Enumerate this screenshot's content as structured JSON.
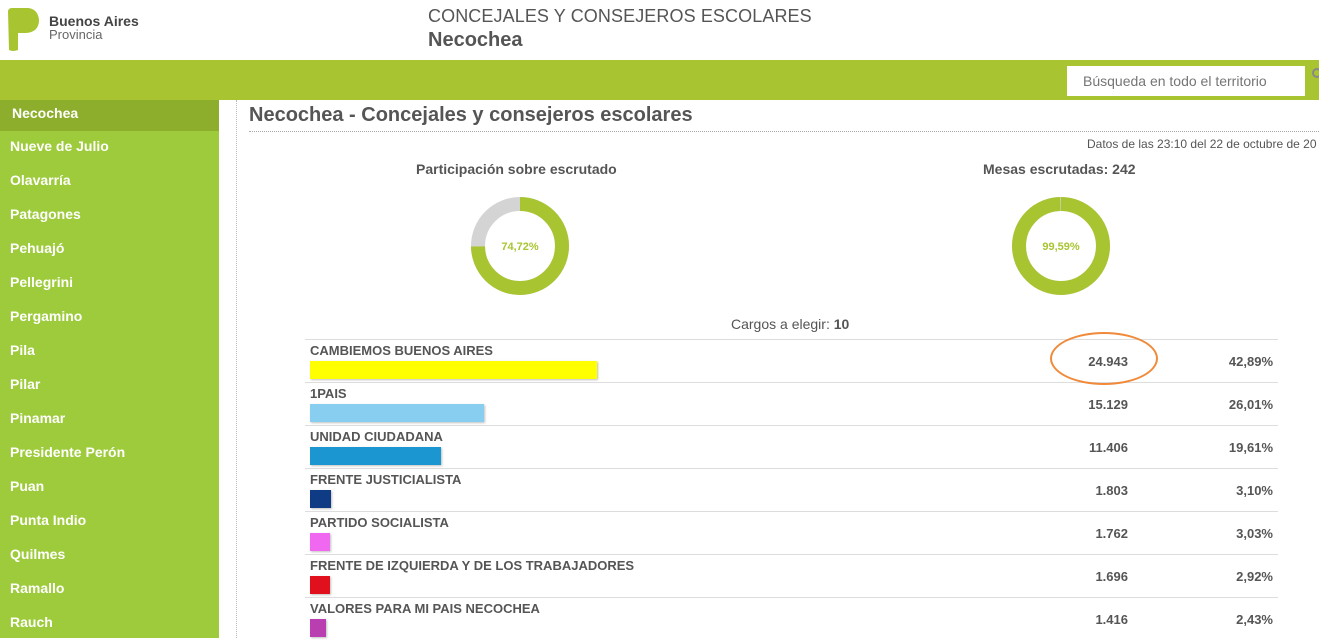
{
  "header": {
    "logo_line1": "Buenos Aires",
    "logo_line2": "Provincia",
    "title": "CONCEJALES Y CONSEJEROS ESCOLARES",
    "subtitle": "Necochea"
  },
  "search": {
    "placeholder": "Búsqueda en todo el territorio"
  },
  "sidebar": {
    "items": [
      {
        "label": "Necochea",
        "active": true
      },
      {
        "label": "Nueve de Julio"
      },
      {
        "label": "Olavarría"
      },
      {
        "label": "Patagones"
      },
      {
        "label": "Pehuajó"
      },
      {
        "label": "Pellegrini"
      },
      {
        "label": "Pergamino"
      },
      {
        "label": "Pila"
      },
      {
        "label": "Pilar"
      },
      {
        "label": "Pinamar"
      },
      {
        "label": "Presidente Perón"
      },
      {
        "label": "Puan"
      },
      {
        "label": "Punta Indio"
      },
      {
        "label": "Quilmes"
      },
      {
        "label": "Ramallo"
      },
      {
        "label": "Rauch"
      }
    ]
  },
  "main": {
    "title": "Necochea - Concejales y consejeros escolares",
    "datos": "Datos de las 23:10 del 22 de octubre de 20",
    "participacion": {
      "label": "Participación sobre escrutado",
      "value_text": "74,72%",
      "fraction": 0.7472
    },
    "mesas": {
      "label": "Mesas escrutadas: 242",
      "value_text": "99,59%",
      "fraction": 0.9959
    },
    "cargos_label": "Cargos a elegir: ",
    "cargos_value": "10"
  },
  "colors": {
    "green": "#a8c531",
    "sidebar": "#9ecb3c",
    "gray": "#d4d4d4",
    "highlight": "#f08a3a"
  },
  "results": [
    {
      "name": "CAMBIEMOS BUENOS AIRES",
      "votes": "24.943",
      "pct": "42,89%",
      "share": 42.89,
      "color": "#ffff00"
    },
    {
      "name": "1PAIS",
      "votes": "15.129",
      "pct": "26,01%",
      "share": 26.01,
      "color": "#87cef0"
    },
    {
      "name": "UNIDAD CIUDADANA",
      "votes": "11.406",
      "pct": "19,61%",
      "share": 19.61,
      "color": "#1b96d1"
    },
    {
      "name": "FRENTE JUSTICIALISTA",
      "votes": "1.803",
      "pct": "3,10%",
      "share": 3.1,
      "color": "#0e3b84"
    },
    {
      "name": "PARTIDO SOCIALISTA",
      "votes": "1.762",
      "pct": "3,03%",
      "share": 3.03,
      "color": "#f067f0"
    },
    {
      "name": "FRENTE DE IZQUIERDA Y DE LOS TRABAJADORES",
      "votes": "1.696",
      "pct": "2,92%",
      "share": 2.92,
      "color": "#e0101c"
    },
    {
      "name": "VALORES PARA MI PAIS NECOCHEA",
      "votes": "1.416",
      "pct": "2,43%",
      "share": 2.43,
      "color": "#b93fb0"
    }
  ]
}
